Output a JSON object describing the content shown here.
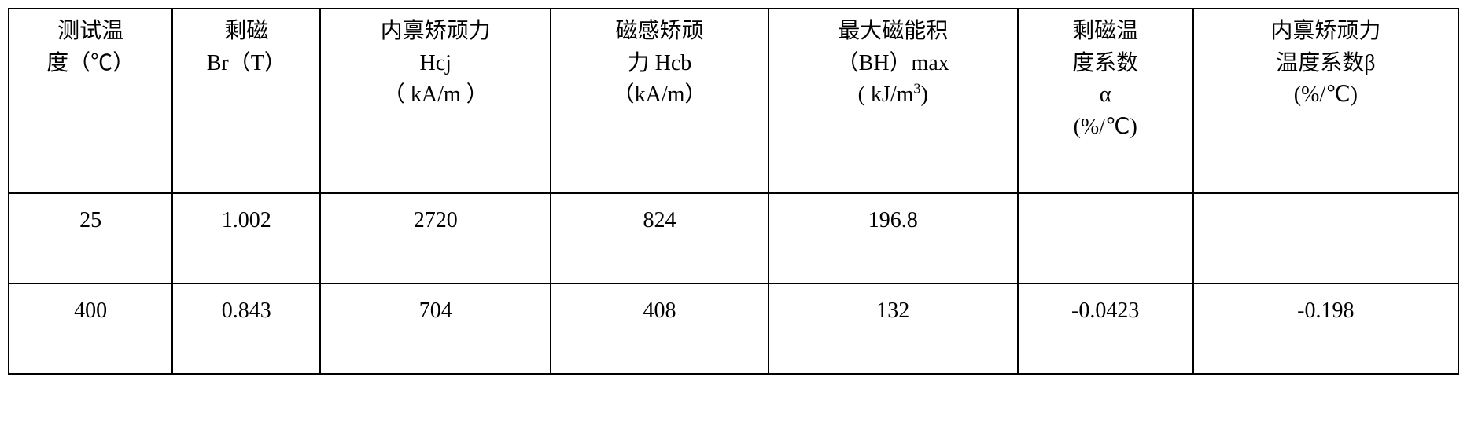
{
  "type": "table",
  "background_color": "#ffffff",
  "border_color": "#000000",
  "text_color": "#000000",
  "font_family": "SimSun",
  "header_fontsize": 28,
  "cell_fontsize": 28,
  "border_width": 2,
  "columns": [
    {
      "width_pct": 11.3,
      "lines": [
        "测试温",
        "度（℃）"
      ]
    },
    {
      "width_pct": 10.2,
      "lines": [
        "剩磁",
        "Br（T）"
      ]
    },
    {
      "width_pct": 15.9,
      "lines": [
        "内禀矫顽力",
        "Hcj",
        "（ kA/m ）"
      ]
    },
    {
      "width_pct": 15.0,
      "lines": [
        "磁感矫顽",
        "力 Hcb",
        "（kA/m）"
      ]
    },
    {
      "width_pct": 17.2,
      "lines": [
        "最大磁能积",
        "（BH）max",
        "( kJ/m³)"
      ]
    },
    {
      "width_pct": 12.1,
      "lines": [
        "剩磁温",
        "度系数",
        "α",
        "(%/℃)"
      ]
    },
    {
      "width_pct": 18.3,
      "lines": [
        "内禀矫顽力",
        "温度系数β",
        "(%/℃)"
      ]
    }
  ],
  "rows": [
    [
      "25",
      "1.002",
      "2720",
      "824",
      "196.8",
      "",
      ""
    ],
    [
      "400",
      "0.843",
      "704",
      "408",
      "132",
      "-0.0423",
      "-0.198"
    ]
  ]
}
